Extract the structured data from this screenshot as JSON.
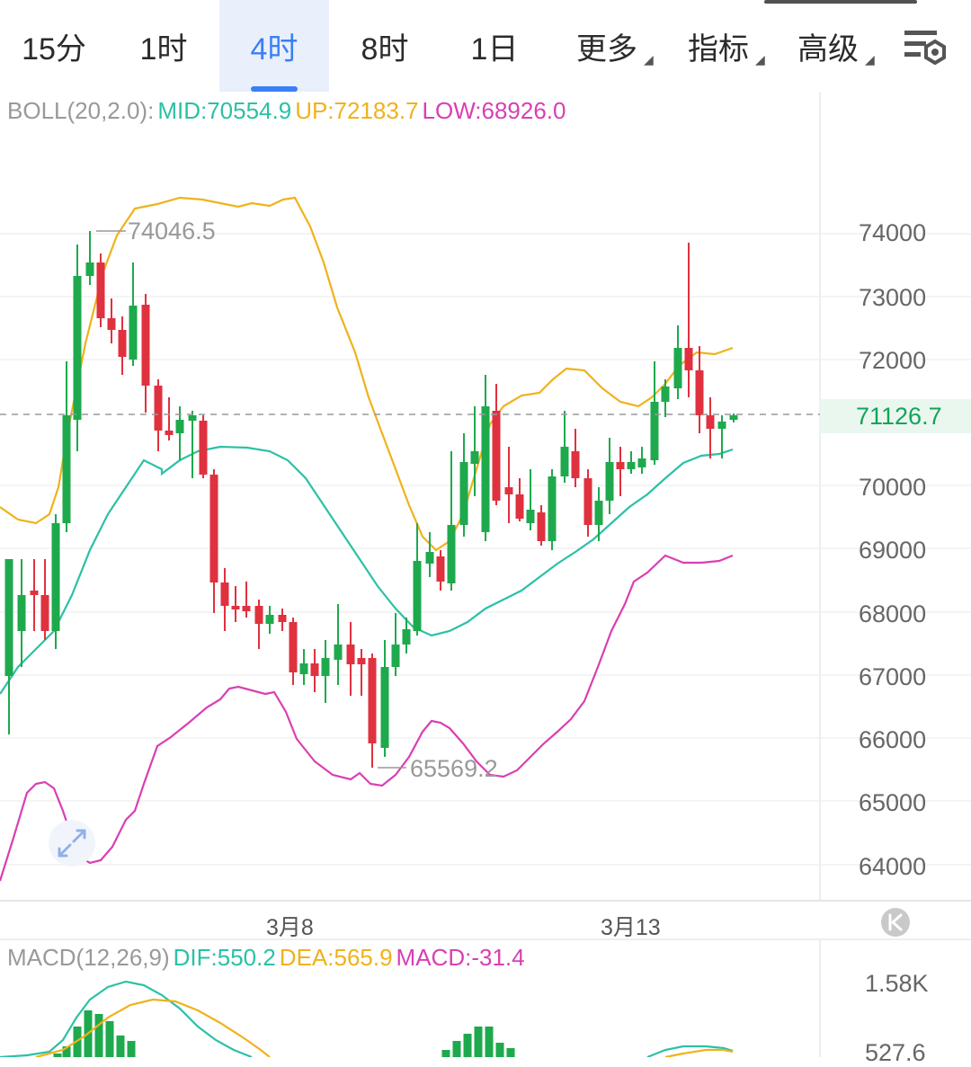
{
  "tabs": [
    "15分",
    "1时",
    "4时",
    "8时",
    "1日",
    "更多",
    "指标",
    "高级"
  ],
  "active_tab": "4时",
  "boll": {
    "label": "BOLL(20,2.0):",
    "mid": "MID:70554.9",
    "up": "UP:72183.7",
    "low": "LOW:68926.0"
  },
  "price_axis": [
    "74000",
    "73000",
    "72000",
    "70000",
    "69000",
    "68000",
    "67000",
    "66000",
    "65000",
    "64000"
  ],
  "current_price": "71126.7",
  "high_annotation": "74046.5",
  "low_annotation": "65569.2",
  "date_labels": [
    "3月8",
    "3月13"
  ],
  "macd": {
    "label": "MACD(12,26,9)",
    "dif": "DIF:550.2",
    "dea": "DEA:565.9",
    "macd": "MACD:-31.4",
    "axis": [
      "1.58K",
      "527.6"
    ]
  },
  "colors": {
    "up": "#1ea94d",
    "down": "#e0313f",
    "mid": "#2bc1a6",
    "upper": "#f0b21b",
    "lower": "#d93fb3",
    "accent": "#3b7ef6"
  },
  "icons": [
    "settings-icon",
    "collapse-icon",
    "expand-icon"
  ]
}
